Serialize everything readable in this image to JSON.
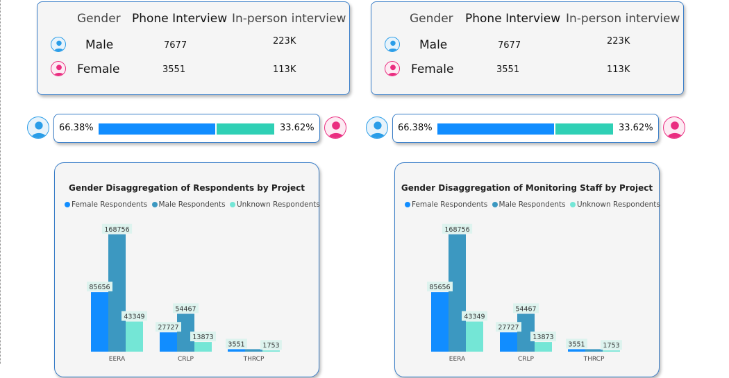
{
  "colors": {
    "male": "#118dff",
    "female": "#2fd0b5",
    "female_respondents": "#118dff",
    "male_respondents": "#3c98c1",
    "unknown_respondents": "#74e6d6",
    "label_bg": "#ddf3ee",
    "male_avatar": "#2a9de8",
    "female_avatar": "#ea2d80"
  },
  "icons": {
    "male": "male-user-avatar-icon",
    "female": "female-user-avatar-icon"
  },
  "panels": [
    {
      "headers": {
        "gender": "Gender",
        "phone": "Phone Interview",
        "inperson": "In-person interview"
      },
      "rows": [
        {
          "gender": "Male",
          "phone": "7677",
          "inperson": "223K"
        },
        {
          "gender": "Female",
          "phone": "3551",
          "inperson": "113K"
        }
      ],
      "split": {
        "male_pct_label": "66.38%",
        "female_pct_label": "33.62%",
        "male_fraction": 0.6638
      },
      "chart": {
        "title": "Gender Disaggregation of Respondents by Project",
        "legend": [
          "Female Respondents",
          "Male Respondents",
          "Unknown Respondents"
        ]
      }
    },
    {
      "headers": {
        "gender": "Gender",
        "phone": "Phone Interview",
        "inperson": "In-person interview"
      },
      "rows": [
        {
          "gender": "Male",
          "phone": "7677",
          "inperson": "223K"
        },
        {
          "gender": "Female",
          "phone": "3551",
          "inperson": "113K"
        }
      ],
      "split": {
        "male_pct_label": "66.38%",
        "female_pct_label": "33.62%",
        "male_fraction": 0.6638
      },
      "chart": {
        "title": "Gender Disaggregation of Monitoring Staff by Project",
        "legend": [
          "Female Respondents",
          "Male Respondents",
          "Unknown Respondents"
        ]
      }
    }
  ],
  "chart_data": [
    {
      "type": "bar",
      "title": "Gender Disaggregation of Respondents by Project",
      "categories": [
        "EERA",
        "CRLP",
        "THRCP"
      ],
      "series": [
        {
          "name": "Female Respondents",
          "values": [
            85656,
            27727,
            3551
          ]
        },
        {
          "name": "Male Respondents",
          "values": [
            168756,
            54467,
            3551
          ]
        },
        {
          "name": "Unknown Respondents",
          "values": [
            43349,
            13873,
            1753
          ]
        }
      ],
      "data_labels": [
        [
          "85656",
          "27727",
          "3551"
        ],
        [
          "168756",
          "54467",
          ""
        ],
        [
          "43349",
          "13873",
          "1753"
        ]
      ],
      "legend_position": "top-left",
      "ylim": [
        0,
        175000
      ],
      "grid": false
    },
    {
      "type": "bar",
      "title": "Gender Disaggregation of Monitoring Staff by Project",
      "categories": [
        "EERA",
        "CRLP",
        "THRCP"
      ],
      "series": [
        {
          "name": "Female Respondents",
          "values": [
            85656,
            27727,
            3551
          ]
        },
        {
          "name": "Male Respondents",
          "values": [
            168756,
            54467,
            3551
          ]
        },
        {
          "name": "Unknown Respondents",
          "values": [
            43349,
            13873,
            1753
          ]
        }
      ],
      "data_labels": [
        [
          "85656",
          "27727",
          "3551"
        ],
        [
          "168756",
          "54467",
          ""
        ],
        [
          "43349",
          "13873",
          "1753"
        ]
      ],
      "legend_position": "top-left",
      "ylim": [
        0,
        175000
      ],
      "grid": false
    }
  ]
}
